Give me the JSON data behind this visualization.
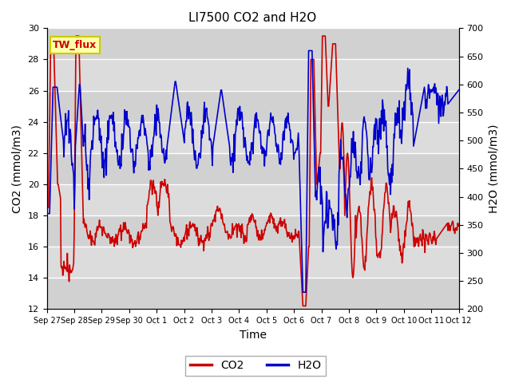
{
  "title": "LI7500 CO2 and H2O",
  "xlabel": "Time",
  "ylabel_left": "CO2 (mmol/m3)",
  "ylabel_right": "H2O (mmol/m3)",
  "ylim_left": [
    12,
    30
  ],
  "ylim_right": [
    200,
    700
  ],
  "yticks_left": [
    12,
    14,
    16,
    18,
    20,
    22,
    24,
    26,
    28,
    30
  ],
  "yticks_right": [
    200,
    250,
    300,
    350,
    400,
    450,
    500,
    550,
    600,
    650,
    700
  ],
  "xtick_labels": [
    "Sep 27",
    "Sep 28",
    "Sep 29",
    "Sep 30",
    "Oct 1",
    "Oct 2",
    "Oct 3",
    "Oct 4",
    "Oct 5",
    "Oct 6",
    "Oct 7",
    "Oct 8",
    "Oct 9",
    "Oct 10",
    "Oct 11",
    "Oct 12"
  ],
  "co2_color": "#cc0000",
  "h2o_color": "#0000cc",
  "background_color": "#e8e8e8",
  "plot_bg_color": "#dcdcdc",
  "grid_color": "#ffffff",
  "annotation_text": "TW_flux",
  "annotation_box_color": "#ffffaa",
  "annotation_border_color": "#cccc00",
  "title_fontsize": 11,
  "axis_label_fontsize": 10,
  "tick_fontsize": 8,
  "legend_fontsize": 10,
  "line_width": 1.2
}
